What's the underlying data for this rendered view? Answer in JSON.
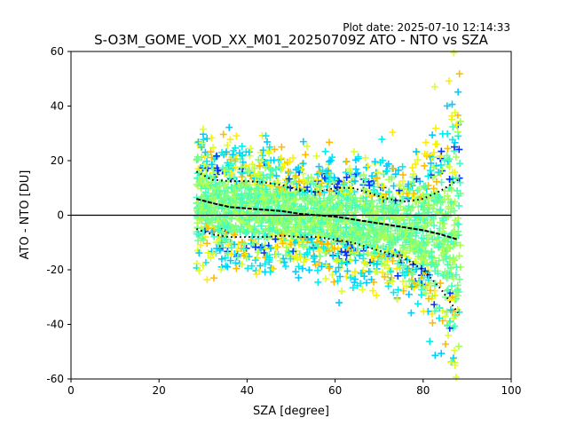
{
  "plot_date": "Plot date: 2025-07-10 12:14:33",
  "chart_data": {
    "type": "scatter",
    "title": "S-O3M_GOME_VOD_XX_M01_20250709Z ATO - NTO vs SZA",
    "xlabel": "SZA [degree]",
    "ylabel": "ATO - NTO [DU]",
    "xlim": [
      0,
      100
    ],
    "ylim": [
      -60,
      60
    ],
    "xticks": [
      0,
      20,
      40,
      60,
      80,
      100
    ],
    "yticks": [
      -60,
      -40,
      -20,
      0,
      20,
      40,
      60
    ],
    "grid": false,
    "legend": "none",
    "zero_line": 0,
    "scatter_marker": "+",
    "scatter_x_range": [
      28.5,
      88.5
    ],
    "scatter_colormap": [
      "#0033ff",
      "#00ccff",
      "#00eeee",
      "#44ffbb",
      "#77ff88",
      "#aaff55",
      "#ddff22",
      "#ffee00",
      "#ffbb00"
    ],
    "series": [
      {
        "name": "median",
        "style": "black dashes",
        "x": [
          28.5,
          32,
          36,
          40,
          44,
          48,
          52,
          56,
          60,
          64,
          68,
          72,
          76,
          80,
          84,
          88
        ],
        "y": [
          6,
          4.5,
          3,
          2.5,
          2,
          1.5,
          0.5,
          0,
          -0.5,
          -1.5,
          -2.5,
          -3.5,
          -4.5,
          -5.5,
          -7,
          -9
        ]
      },
      {
        "name": "upper",
        "style": "black dotted",
        "x": [
          28.5,
          32,
          36,
          40,
          44,
          48,
          52,
          56,
          60,
          64,
          68,
          72,
          76,
          80,
          84,
          88
        ],
        "y": [
          16,
          13,
          12.5,
          12.5,
          12,
          11,
          9,
          8.5,
          10,
          10,
          8,
          6,
          5,
          6,
          9,
          13
        ]
      },
      {
        "name": "lower",
        "style": "black dotted",
        "x": [
          28.5,
          32,
          36,
          40,
          44,
          48,
          52,
          56,
          60,
          64,
          68,
          72,
          76,
          80,
          84,
          88
        ],
        "y": [
          -5,
          -7,
          -8,
          -8,
          -8,
          -7.5,
          -8,
          -8,
          -9,
          -10,
          -12,
          -14,
          -16,
          -20,
          -27,
          -36
        ]
      }
    ]
  }
}
